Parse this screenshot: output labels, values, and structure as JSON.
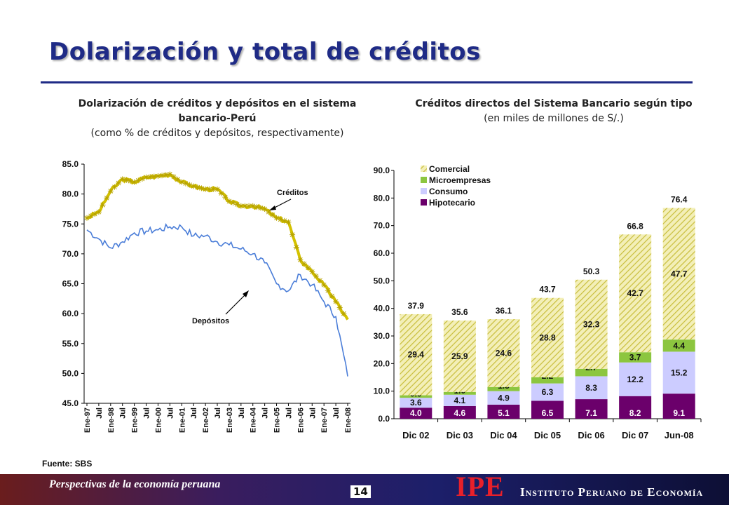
{
  "slide": {
    "title": "Dolarización y total de créditos",
    "source": "Fuente: SBS",
    "footer_text": "Perspectivas de la economía peruana",
    "page_number": "14",
    "logo_text": "IPE",
    "institute_name": "Instituto Peruano de Economía"
  },
  "left_chart": {
    "title": "Dolarización de créditos y depósitos en el sistema bancario-Perú",
    "subtitle": "(como % de créditos y depósitos, respectivamente)"
  },
  "right_chart": {
    "title": "Créditos directos del Sistema Bancario según tipo",
    "subtitle": "(en miles de millones de S/.)"
  },
  "chart_data": [
    {
      "type": "line",
      "ylim": [
        45,
        85
      ],
      "yticks": [
        "85.0",
        "80.0",
        "75.0",
        "70.0",
        "65.0",
        "60.0",
        "55.0",
        "50.0",
        "45.0"
      ],
      "xtick_labels": [
        "Ene-97",
        "Jul",
        "Ene-98",
        "Jul",
        "Ene-99",
        "Jul",
        "Ene-00",
        "Jul",
        "Ene-01",
        "Jul",
        "Ene-02",
        "Jul",
        "Ene-03",
        "Jul",
        "Ene-04",
        "Jul",
        "Ene-05",
        "Jul",
        "Ene-06",
        "Jul",
        "Ene-07",
        "Jul",
        "Ene-08"
      ],
      "x_start": "1997-01",
      "x_step_months": 6,
      "series": [
        {
          "name": "Créditos",
          "color": "#c9b400",
          "marker": "star",
          "values": [
            76,
            77,
            80.5,
            82.5,
            82,
            82.8,
            83,
            83.3,
            82,
            81.3,
            80.8,
            80.8,
            78.8,
            78,
            78,
            77.5,
            76,
            75.3,
            69,
            67,
            64.8,
            62,
            59
          ]
        },
        {
          "name": "Depósitos",
          "color": "#4a7dd8",
          "marker": "none",
          "values": [
            74,
            72.5,
            71,
            72,
            73.5,
            73.8,
            74,
            74.5,
            74.5,
            73,
            73,
            72,
            71.5,
            70.8,
            70,
            68.5,
            65,
            63.8,
            66.5,
            64.8,
            62,
            59.5,
            49.5
          ]
        }
      ],
      "annotations": [
        "Créditos",
        "Depósitos"
      ]
    },
    {
      "type": "bar",
      "stacked": true,
      "ylim": [
        0,
        90
      ],
      "yticks": [
        "90.0",
        "80.0",
        "70.0",
        "60.0",
        "50.0",
        "40.0",
        "30.0",
        "20.0",
        "10.0",
        "0.0"
      ],
      "categories": [
        "Dic 02",
        "Dic 03",
        "Dic 04",
        "Dic 05",
        "Dic 06",
        "Dic 07",
        "Jun-08"
      ],
      "totals": [
        "37.9",
        "35.6",
        "36.1",
        "43.7",
        "50.3",
        "66.8",
        "76.4"
      ],
      "series": [
        {
          "name": "Hipotecario",
          "color": "#6b006b",
          "values": [
            4.0,
            4.6,
            5.1,
            6.5,
            7.1,
            8.2,
            9.1
          ]
        },
        {
          "name": "Consumo",
          "color": "#ccccff",
          "values": [
            3.6,
            4.1,
            4.9,
            6.3,
            8.3,
            12.2,
            15.2
          ]
        },
        {
          "name": "Microempresas",
          "color": "#8cc63f",
          "values": [
            0.9,
            1.0,
            1.5,
            2.2,
            2.7,
            3.7,
            4.4
          ]
        },
        {
          "name": "Comercial",
          "color": "#e6e08a",
          "values": [
            29.4,
            25.9,
            24.6,
            28.8,
            32.3,
            42.7,
            47.7
          ]
        }
      ],
      "legend": [
        "Comercial",
        "Microempresas",
        "Consumo",
        "Hipotecario"
      ]
    }
  ]
}
